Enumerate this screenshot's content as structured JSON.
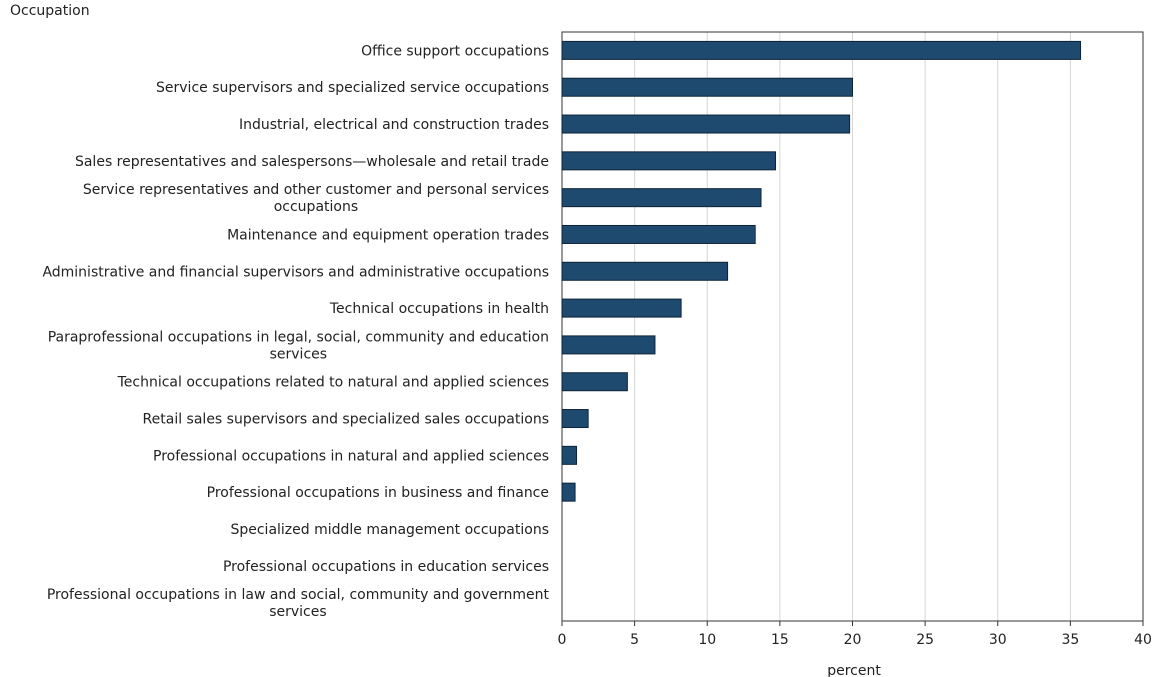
{
  "chart_data": {
    "type": "bar",
    "orientation": "horizontal",
    "ylabel": "Occupation",
    "xlabel": "percent",
    "xlim": [
      0,
      40
    ],
    "xticks": [
      0,
      5,
      10,
      15,
      20,
      25,
      30,
      35,
      40
    ],
    "grid": true,
    "bar_color": "#1f4a70",
    "categories": [
      [
        "Office support occupations"
      ],
      [
        "Service supervisors and specialized service occupations"
      ],
      [
        "Industrial, electrical and construction trades"
      ],
      [
        "Sales representatives and salespersons—wholesale and retail trade"
      ],
      [
        "Service representatives and other customer and personal services",
        "occupations"
      ],
      [
        "Maintenance and equipment operation trades"
      ],
      [
        "Administrative and financial supervisors and administrative occupations"
      ],
      [
        "Technical occupations in health"
      ],
      [
        "Paraprofessional occupations in legal, social, community and education",
        "services"
      ],
      [
        "Technical occupations related to natural and applied sciences"
      ],
      [
        "Retail sales supervisors and specialized sales occupations"
      ],
      [
        "Professional occupations in natural and applied sciences"
      ],
      [
        "Professional occupations in business and finance"
      ],
      [
        "Specialized middle management occupations"
      ],
      [
        "Professional occupations in education services"
      ],
      [
        "Professional occupations in law and social, community and government",
        "services"
      ]
    ],
    "values": [
      35.7,
      20.0,
      19.8,
      14.7,
      13.7,
      13.3,
      11.4,
      8.2,
      6.4,
      4.5,
      1.8,
      1.0,
      0.9,
      0,
      0,
      0
    ]
  }
}
